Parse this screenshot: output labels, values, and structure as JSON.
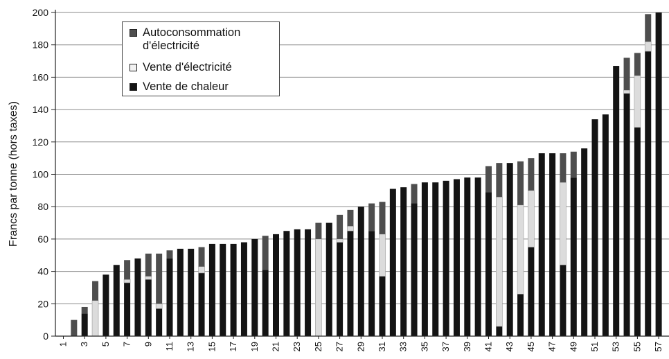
{
  "chart_data": {
    "type": "bar",
    "stacked": true,
    "title": "",
    "xlabel": "",
    "ylabel": "Francs par tonne (hors taxes)",
    "ylim": [
      0,
      200
    ],
    "yticks": [
      0,
      20,
      40,
      60,
      80,
      100,
      120,
      140,
      160,
      180,
      200
    ],
    "grid": true,
    "legend_position": "top-left",
    "categories": [
      "1",
      "2",
      "3",
      "4",
      "5",
      "6",
      "7",
      "8",
      "9",
      "10",
      "11",
      "12",
      "13",
      "14",
      "15",
      "16",
      "17",
      "18",
      "19",
      "20",
      "21",
      "22",
      "23",
      "24",
      "25",
      "26",
      "27",
      "28",
      "29",
      "30",
      "31",
      "32",
      "33",
      "34",
      "35",
      "36",
      "37",
      "38",
      "39",
      "40",
      "41",
      "42",
      "43",
      "44",
      "45",
      "46",
      "47",
      "48",
      "49",
      "50",
      "51",
      "52",
      "53",
      "54",
      "55",
      "56",
      "57"
    ],
    "tick_labels": [
      "1",
      "3",
      "5",
      "7",
      "9",
      "11",
      "13",
      "15",
      "17",
      "19",
      "21",
      "23",
      "25",
      "27",
      "29",
      "31",
      "33",
      "35",
      "37",
      "39",
      "41",
      "43",
      "45",
      "47",
      "49",
      "51",
      "53",
      "55",
      "57"
    ],
    "series": [
      {
        "name": "Vente de chaleur",
        "color": "#141414",
        "values": [
          0,
          0,
          14,
          0,
          38,
          44,
          33,
          48,
          35,
          17,
          48,
          54,
          54,
          39,
          57,
          57,
          57,
          58,
          60,
          41,
          63,
          65,
          66,
          66,
          0,
          70,
          58,
          65,
          80,
          65,
          37,
          91,
          92,
          82,
          95,
          95,
          96,
          97,
          98,
          98,
          89,
          6,
          107,
          26,
          55,
          113,
          113,
          44,
          98,
          116,
          134,
          137,
          167,
          150,
          129,
          176,
          200
        ]
      },
      {
        "name": "Vente d'électricité",
        "color": "#dcdcdc",
        "values": [
          0,
          0,
          0,
          22,
          0,
          0,
          2,
          0,
          2,
          3,
          0,
          0,
          0,
          4,
          0,
          0,
          0,
          0,
          0,
          0,
          0,
          0,
          0,
          0,
          60,
          0,
          2,
          3,
          0,
          0,
          26,
          0,
          0,
          0,
          0,
          0,
          0,
          0,
          0,
          0,
          0,
          80,
          0,
          55,
          35,
          0,
          0,
          51,
          0,
          0,
          0,
          0,
          0,
          2,
          32,
          6,
          0
        ]
      },
      {
        "name": "Autoconsommation d'électricité",
        "color": "#4e4e4e",
        "values": [
          0,
          10,
          4,
          12,
          0,
          0,
          12,
          0,
          14,
          31,
          5,
          0,
          0,
          12,
          0,
          0,
          0,
          0,
          0,
          21,
          0,
          0,
          0,
          0,
          10,
          0,
          15,
          10,
          0,
          17,
          20,
          0,
          0,
          12,
          0,
          0,
          0,
          0,
          0,
          0,
          16,
          21,
          0,
          27,
          20,
          0,
          0,
          18,
          16,
          0,
          0,
          0,
          0,
          20,
          14,
          17,
          0
        ]
      }
    ]
  },
  "legend": {
    "items": [
      {
        "line1": "Autoconsommation",
        "line2": "d'électricité"
      },
      {
        "line1": "Vente d'électricité"
      },
      {
        "line1": "Vente de chaleur"
      }
    ]
  }
}
